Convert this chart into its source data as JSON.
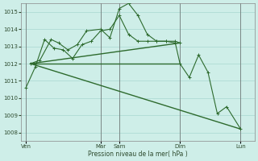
{
  "background_color": "#ceeee8",
  "grid_color": "#a8d8d0",
  "line_color": "#2d6a2d",
  "xlabel": "Pression niveau de la mer( hPa )",
  "ylim": [
    1007.5,
    1015.5
  ],
  "yticks": [
    1008,
    1009,
    1010,
    1011,
    1012,
    1013,
    1014,
    1015
  ],
  "xlim": [
    0,
    25
  ],
  "xtick_labels_pos": [
    0.5,
    8.5,
    10.5,
    17.0,
    23.5
  ],
  "xtick_labels_text": [
    "Ven",
    "Mar",
    "Sam",
    "Dim",
    "Lun"
  ],
  "vline_positions": [
    0.5,
    8.5,
    10.5,
    17.0,
    23.5
  ],
  "series_zigzag1": {
    "x": [
      1.0,
      2.0,
      3.2,
      4.0,
      5.0,
      6.0,
      7.0,
      8.5,
      9.5,
      10.5,
      11.5,
      12.5,
      13.5,
      14.5,
      15.5,
      16.5,
      17.0
    ],
    "y": [
      1012.0,
      1012.2,
      1013.4,
      1013.2,
      1012.8,
      1013.1,
      1013.9,
      1014.0,
      1013.5,
      1015.2,
      1015.5,
      1014.8,
      1013.7,
      1013.3,
      1013.3,
      1013.3,
      1013.2
    ]
  },
  "series_zigzag2": {
    "x": [
      0.5,
      1.5,
      2.5,
      3.5,
      4.5,
      5.5,
      6.5,
      7.5,
      8.5,
      9.5,
      10.5,
      11.5,
      12.5,
      13.5,
      14.5,
      15.5,
      16.5,
      17.0,
      18.0,
      19.0,
      20.0,
      21.0,
      22.0,
      23.5
    ],
    "y": [
      1010.6,
      1011.8,
      1013.4,
      1012.9,
      1012.8,
      1012.3,
      1013.1,
      1013.3,
      1013.9,
      1014.0,
      1014.8,
      1013.7,
      1013.3,
      1013.3,
      1013.3,
      1013.3,
      1013.2,
      1012.0,
      1011.2,
      1012.5,
      1011.5,
      1009.1,
      1009.5,
      1008.2
    ]
  },
  "series_flat": {
    "x": [
      1.0,
      17.0
    ],
    "y": [
      1012.0,
      1012.0
    ]
  },
  "series_rising": {
    "x": [
      1.0,
      17.0
    ],
    "y": [
      1012.0,
      1013.2
    ]
  },
  "series_declining": {
    "x": [
      1.0,
      23.5
    ],
    "y": [
      1012.0,
      1008.2
    ]
  }
}
